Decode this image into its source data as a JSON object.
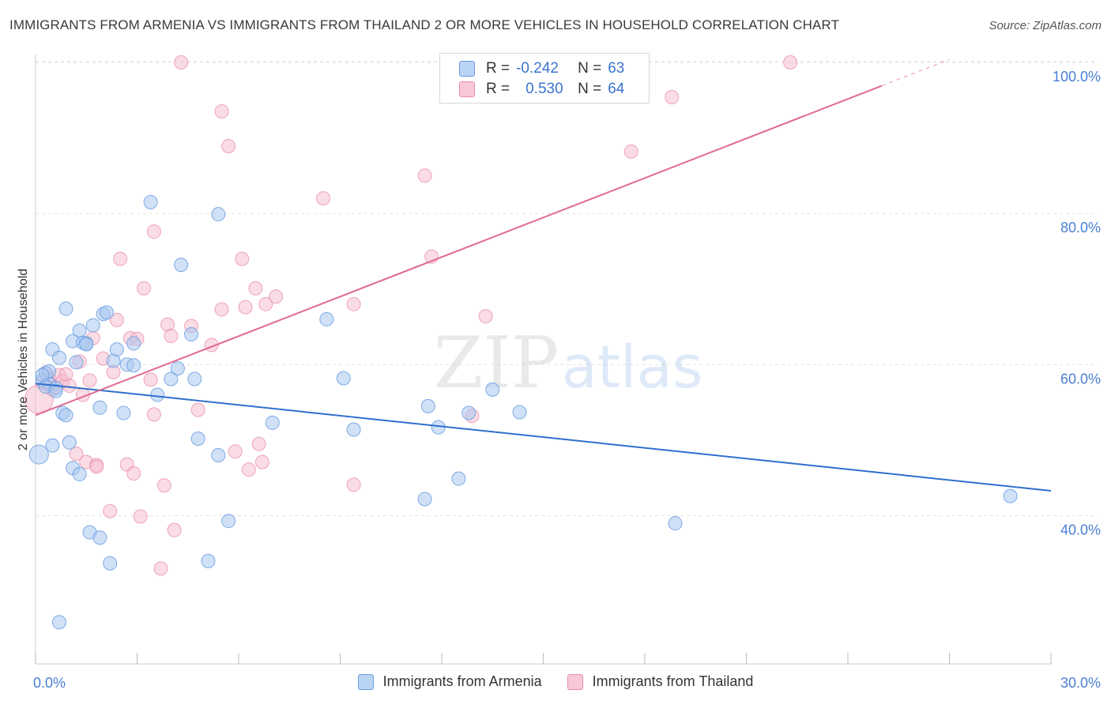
{
  "title": "IMMIGRANTS FROM ARMENIA VS IMMIGRANTS FROM THAILAND 2 OR MORE VEHICLES IN HOUSEHOLD CORRELATION CHART",
  "source": "Source: ZipAtlas.com",
  "watermark": {
    "zip": "ZIP",
    "atlas": "atlas"
  },
  "legend": {
    "rows": [
      {
        "r_label": "R =",
        "r_value": "-0.242",
        "n_label": "N =",
        "n_value": "63"
      },
      {
        "r_label": "R =",
        "r_value": "0.530",
        "n_label": "N =",
        "n_value": "64"
      }
    ]
  },
  "colors": {
    "armenia_fill": "#a9c8f0",
    "armenia_stroke": "#6a9de0",
    "armenia_line": "#2f6fce",
    "thailand_fill": "#f6bfd0",
    "thailand_stroke": "#e98aa8",
    "thailand_line": "#e06a93",
    "tick_text": "#4a7fd4",
    "grid": "#e2e2e2"
  },
  "chart_data": {
    "type": "scatter",
    "title": "IMMIGRANTS FROM ARMENIA VS IMMIGRANTS FROM THAILAND 2 OR MORE VEHICLES IN HOUSEHOLD CORRELATION CHART",
    "xlabel": "",
    "ylabel": "2 or more Vehicles in Household",
    "xlim": [
      0,
      30
    ],
    "ylim": [
      20,
      102
    ],
    "x_tick_labels": [
      "0.0%",
      "30.0%"
    ],
    "y_ticks": [
      40,
      60,
      80,
      100
    ],
    "y_tick_labels": [
      "40.0%",
      "60.0%",
      "80.0%",
      "100.0%"
    ],
    "grid": true,
    "legend_position": "top-center",
    "series": [
      {
        "name": "Immigrants from Armenia",
        "r": -0.242,
        "n": 63,
        "trend": {
          "x": [
            0,
            30
          ],
          "y": [
            57.5,
            43.3
          ]
        },
        "points": [
          [
            0.1,
            48.1
          ],
          [
            0.2,
            57.9
          ],
          [
            0.3,
            58.9
          ],
          [
            0.4,
            59.1
          ],
          [
            0.4,
            57.4
          ],
          [
            0.5,
            62.0
          ],
          [
            0.5,
            49.3
          ],
          [
            0.6,
            56.9
          ],
          [
            0.7,
            60.9
          ],
          [
            0.8,
            53.6
          ],
          [
            0.9,
            53.3
          ],
          [
            0.9,
            67.4
          ],
          [
            1.0,
            49.7
          ],
          [
            1.1,
            63.1
          ],
          [
            1.1,
            46.3
          ],
          [
            1.2,
            60.3
          ],
          [
            1.3,
            45.5
          ],
          [
            1.3,
            64.5
          ],
          [
            1.4,
            62.9
          ],
          [
            1.5,
            62.8
          ],
          [
            1.6,
            37.8
          ],
          [
            1.7,
            65.2
          ],
          [
            1.9,
            54.3
          ],
          [
            1.9,
            37.1
          ],
          [
            2.0,
            66.7
          ],
          [
            2.1,
            66.9
          ],
          [
            2.2,
            33.7
          ],
          [
            2.3,
            60.5
          ],
          [
            2.4,
            62.0
          ],
          [
            2.6,
            53.6
          ],
          [
            2.7,
            60.0
          ],
          [
            2.9,
            59.9
          ],
          [
            2.9,
            62.8
          ],
          [
            3.4,
            81.5
          ],
          [
            3.6,
            56.0
          ],
          [
            4.0,
            58.1
          ],
          [
            4.2,
            59.5
          ],
          [
            4.3,
            73.2
          ],
          [
            4.6,
            64.0
          ],
          [
            4.7,
            58.1
          ],
          [
            4.8,
            50.2
          ],
          [
            5.1,
            34.0
          ],
          [
            5.4,
            79.9
          ],
          [
            5.4,
            48.0
          ],
          [
            5.7,
            39.3
          ],
          [
            7.0,
            52.3
          ],
          [
            8.6,
            66.0
          ],
          [
            9.1,
            58.2
          ],
          [
            9.4,
            51.4
          ],
          [
            11.5,
            42.2
          ],
          [
            11.6,
            54.5
          ],
          [
            11.9,
            51.7
          ],
          [
            12.5,
            44.9
          ],
          [
            12.8,
            53.6
          ],
          [
            13.5,
            56.7
          ],
          [
            14.3,
            53.7
          ],
          [
            18.9,
            39.0
          ],
          [
            28.8,
            42.6
          ],
          [
            0.7,
            25.9
          ],
          [
            0.3,
            57.1
          ],
          [
            1.5,
            62.7
          ],
          [
            0.2,
            58.6
          ],
          [
            0.6,
            56.5
          ]
        ]
      },
      {
        "name": "Immigrants from Thailand",
        "r": 0.53,
        "n": 64,
        "trend": {
          "x": [
            0,
            25
          ],
          "y": [
            53.3,
            96.9
          ],
          "dashed_to": {
            "x": 27.0,
            "y": 100.4
          }
        },
        "points": [
          [
            0.1,
            55.4
          ],
          [
            0.2,
            57.6
          ],
          [
            0.3,
            58.9
          ],
          [
            0.4,
            58.2
          ],
          [
            0.5,
            56.7
          ],
          [
            0.6,
            57.0
          ],
          [
            0.7,
            58.6
          ],
          [
            0.8,
            57.8
          ],
          [
            0.9,
            58.7
          ],
          [
            1.0,
            57.2
          ],
          [
            1.2,
            48.2
          ],
          [
            1.3,
            60.4
          ],
          [
            1.4,
            56.0
          ],
          [
            1.5,
            47.1
          ],
          [
            1.6,
            57.9
          ],
          [
            1.7,
            63.5
          ],
          [
            1.8,
            46.7
          ],
          [
            1.8,
            46.5
          ],
          [
            2.0,
            60.8
          ],
          [
            2.2,
            40.6
          ],
          [
            2.3,
            59.0
          ],
          [
            2.4,
            65.9
          ],
          [
            2.5,
            74.0
          ],
          [
            2.7,
            46.8
          ],
          [
            2.8,
            63.5
          ],
          [
            2.9,
            45.6
          ],
          [
            3.0,
            63.4
          ],
          [
            3.1,
            39.9
          ],
          [
            3.2,
            70.1
          ],
          [
            3.4,
            58.0
          ],
          [
            3.5,
            53.4
          ],
          [
            3.5,
            77.6
          ],
          [
            3.7,
            33.0
          ],
          [
            3.8,
            44.0
          ],
          [
            3.9,
            65.3
          ],
          [
            4.0,
            63.8
          ],
          [
            4.1,
            38.1
          ],
          [
            4.3,
            100.0
          ],
          [
            4.6,
            65.1
          ],
          [
            4.8,
            54.0
          ],
          [
            5.2,
            62.6
          ],
          [
            5.5,
            67.3
          ],
          [
            5.5,
            93.5
          ],
          [
            5.7,
            88.9
          ],
          [
            5.9,
            48.5
          ],
          [
            6.1,
            74.0
          ],
          [
            6.2,
            67.6
          ],
          [
            6.3,
            46.1
          ],
          [
            6.5,
            70.1
          ],
          [
            6.6,
            49.5
          ],
          [
            6.7,
            47.1
          ],
          [
            6.8,
            68.0
          ],
          [
            7.1,
            69.0
          ],
          [
            8.5,
            82.0
          ],
          [
            9.4,
            44.1
          ],
          [
            9.4,
            68.0
          ],
          [
            11.5,
            85.0
          ],
          [
            11.7,
            74.3
          ],
          [
            12.9,
            53.2
          ],
          [
            13.3,
            66.4
          ],
          [
            17.6,
            88.2
          ],
          [
            18.8,
            95.4
          ],
          [
            22.3,
            100.0
          ],
          [
            0.4,
            57.6
          ]
        ]
      }
    ]
  }
}
